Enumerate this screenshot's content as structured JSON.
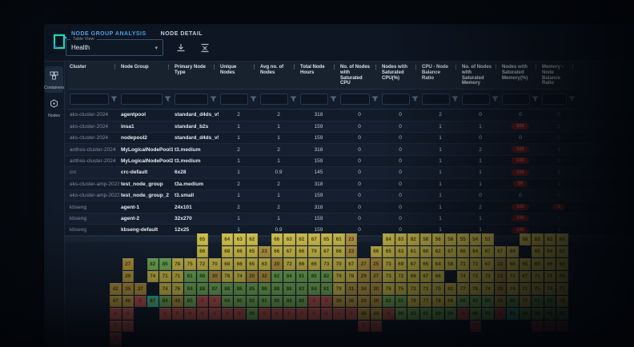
{
  "tabs": [
    {
      "label": "NODE GROUP ANALYSIS",
      "active": true
    },
    {
      "label": "NODE DETAIL",
      "active": false
    }
  ],
  "table_view": {
    "label": "Table View",
    "value": "Health"
  },
  "toolbar_icons": {
    "download": "download-icon",
    "fit_view": "fit-view-icon"
  },
  "sidebar": {
    "items": [
      {
        "label": "Containers",
        "icon": "containers-icon",
        "active": true
      },
      {
        "label": "Nodes",
        "icon": "nodes-icon",
        "active": false
      }
    ]
  },
  "colors": {
    "accent_tab": "#4da0e0",
    "pill_bg": "#5d1d1d",
    "pill_text": "#e05252",
    "heat_yellow": "#d2c24c",
    "heat_olive": "#bb9c43",
    "heat_green": "#79b55b",
    "heat_red": "#cf5f57",
    "heat_selected_border": "#19cdd6"
  },
  "table": {
    "columns": [
      "Cluster",
      "Node Group",
      "Primary Node Type",
      "Unique Nodes",
      "Avg no. of Nodes",
      "Total Node Hours",
      "No. of Nodes with Saturated CPU",
      "Nodes with Saturated CPU(%)",
      "CPU - Node Balance Ratio",
      "No. of Nodes with Saturated Memory",
      "Nodes with Saturated Memory(%)",
      "Memory - Node Balance Ratio"
    ],
    "rows": [
      {
        "cluster": "aks-cluster-2024",
        "node_group": "agentpool",
        "primary_node_type": "standard_d4ds_v5",
        "unique_nodes": "2",
        "avg_nodes": "2",
        "total_node_hours": "318",
        "sat_cpu": "0",
        "sat_cpu_pct": "0",
        "cpu_balance": "2",
        "sat_mem": "0",
        "sat_mem_pct": "0",
        "sat_mem_pct_pill": false,
        "mem_balance": "0",
        "mem_balance_pill": false
      },
      {
        "cluster": "aks-cluster-2024",
        "node_group": "insa1",
        "primary_node_type": "standard_b2s",
        "unique_nodes": "1",
        "avg_nodes": "1",
        "total_node_hours": "159",
        "sat_cpu": "0",
        "sat_cpu_pct": "0",
        "cpu_balance": "1",
        "sat_mem": "1",
        "sat_mem_pct": "100",
        "sat_mem_pct_pill": true,
        "mem_balance": "1",
        "mem_balance_pill": false
      },
      {
        "cluster": "aks-cluster-2024",
        "node_group": "nodepool2",
        "primary_node_type": "standard_d4ds_v5",
        "unique_nodes": "1",
        "avg_nodes": "1",
        "total_node_hours": "159",
        "sat_cpu": "0",
        "sat_cpu_pct": "0",
        "cpu_balance": "1",
        "sat_mem": "0",
        "sat_mem_pct": "0",
        "sat_mem_pct_pill": false,
        "mem_balance": "0",
        "mem_balance_pill": false
      },
      {
        "cluster": "anthos-cluster-2024",
        "node_group": "MyLogicalNodePool1",
        "primary_node_type": "t3.medium",
        "unique_nodes": "2",
        "avg_nodes": "2",
        "total_node_hours": "318",
        "sat_cpu": "0",
        "sat_cpu_pct": "0",
        "cpu_balance": "1",
        "sat_mem": "2",
        "sat_mem_pct": "100",
        "sat_mem_pct_pill": true,
        "mem_balance": "1",
        "mem_balance_pill": false
      },
      {
        "cluster": "anthos-cluster-2024",
        "node_group": "MyLogicalNodePool2",
        "primary_node_type": "t3.medium",
        "unique_nodes": "1",
        "avg_nodes": "1",
        "total_node_hours": "159",
        "sat_cpu": "0",
        "sat_cpu_pct": "0",
        "cpu_balance": "1",
        "sat_mem": "1",
        "sat_mem_pct": "100",
        "sat_mem_pct_pill": true,
        "mem_balance": "1",
        "mem_balance_pill": false
      },
      {
        "cluster": "crc",
        "node_group": "crc-default",
        "primary_node_type": "6x28",
        "unique_nodes": "1",
        "avg_nodes": "0.9",
        "total_node_hours": "145",
        "sat_cpu": "0",
        "sat_cpu_pct": "0",
        "cpu_balance": "1",
        "sat_mem": "1",
        "sat_mem_pct": "100",
        "sat_mem_pct_pill": true,
        "mem_balance": "1",
        "mem_balance_pill": false
      },
      {
        "cluster": "eks-cluster-amp-2023",
        "node_group": "test_node_group",
        "primary_node_type": "t3a.medium",
        "unique_nodes": "2",
        "avg_nodes": "2",
        "total_node_hours": "318",
        "sat_cpu": "0",
        "sat_cpu_pct": "0",
        "cpu_balance": "1",
        "sat_mem": "1",
        "sat_mem_pct": "50",
        "sat_mem_pct_pill": true,
        "mem_balance": "1",
        "mem_balance_pill": false
      },
      {
        "cluster": "eks-cluster-amp-2023",
        "node_group": "test_node_group_2",
        "primary_node_type": "t3.small",
        "unique_nodes": "1",
        "avg_nodes": "1",
        "total_node_hours": "159",
        "sat_cpu": "0",
        "sat_cpu_pct": "0",
        "cpu_balance": "1",
        "sat_mem": "0",
        "sat_mem_pct": "0",
        "sat_mem_pct_pill": false,
        "mem_balance": "0",
        "mem_balance_pill": false
      },
      {
        "cluster": "kbseng",
        "node_group": "agent-1",
        "primary_node_type": "24x101",
        "unique_nodes": "2",
        "avg_nodes": "2",
        "total_node_hours": "318",
        "sat_cpu": "0",
        "sat_cpu_pct": "0",
        "cpu_balance": "1",
        "sat_mem": "2",
        "sat_mem_pct": "100",
        "sat_mem_pct_pill": true,
        "mem_balance": "1",
        "mem_balance_pill": true
      },
      {
        "cluster": "kbseng",
        "node_group": "agent-2",
        "primary_node_type": "32x270",
        "unique_nodes": "1",
        "avg_nodes": "1",
        "total_node_hours": "159",
        "sat_cpu": "0",
        "sat_cpu_pct": "0",
        "cpu_balance": "1",
        "sat_mem": "1",
        "sat_mem_pct": "100",
        "sat_mem_pct_pill": true,
        "mem_balance": "1",
        "mem_balance_pill": false
      },
      {
        "cluster": "kbseng",
        "node_group": "kbseng-default",
        "primary_node_type": "12x25",
        "unique_nodes": "1",
        "avg_nodes": "0.9",
        "total_node_hours": "159",
        "sat_cpu": "0",
        "sat_cpu_pct": "0",
        "cpu_balance": "1",
        "sat_mem": "1",
        "sat_mem_pct": "100",
        "sat_mem_pct_pill": true,
        "mem_balance": "1",
        "mem_balance_pill": false
      }
    ]
  },
  "chart_data": {
    "type": "heatmap",
    "title": "",
    "legend_position": "none",
    "cell_color_scale": {
      "y": "yellow 51-85",
      "o": "olive 20-50",
      "g": "green 74-96",
      "r": "red saturated",
      "t": "selected (teal border)"
    },
    "rows": [
      [
        "",
        "",
        "",
        "",
        "",
        "",
        "",
        "65y",
        "",
        "64y",
        "63y",
        "62y",
        "",
        "66y",
        "63y",
        "62y",
        "67y",
        "65y",
        "61y",
        "23o",
        "",
        "",
        "84y",
        "83y",
        "82y",
        "58y",
        "56y",
        "58y",
        "55y",
        "54y",
        "51y",
        "",
        "",
        "58y",
        "63y",
        "62y",
        "60y"
      ],
      [
        "",
        "",
        "",
        "",
        "",
        "",
        "",
        "66y",
        "",
        "68y",
        "66y",
        "65y",
        "23o",
        "66y",
        "67y",
        "66y",
        "70y",
        "67y",
        "66y",
        "23o",
        "",
        "66y",
        "65y",
        "63y",
        "61y",
        "60y",
        "62y",
        "67y",
        "66y",
        "64y",
        "67y",
        "67y",
        "64y",
        "",
        "65y",
        "64y",
        "62y"
      ],
      [
        "",
        "27o",
        "",
        "82g",
        "85g",
        "78y",
        "75y",
        "72y",
        "70y",
        "68y",
        "66y",
        "65y",
        "63y",
        "20o",
        "72y",
        "66y",
        "66y",
        "73y",
        "70y",
        "67y",
        "27o",
        "25o",
        "73y",
        "69y",
        "67y",
        "65y",
        "64y",
        "58y",
        "71y",
        "73y",
        "67y",
        "23o",
        "68y",
        "65y",
        "69y",
        "68y",
        "65y"
      ],
      [
        "",
        "29o",
        "",
        "74y",
        "71y",
        "71y",
        "81g",
        "88g",
        "30o",
        "78y",
        "74y",
        "20o",
        "32o",
        "82g",
        "84g",
        "81g",
        "80g",
        "82g",
        "79y",
        "78y",
        "29o",
        "27o",
        "73y",
        "72y",
        "69y",
        "67y",
        "66y",
        "",
        "74y",
        "72y",
        "73y",
        "23o",
        "72y",
        "67y",
        "71y",
        "71y",
        "66y"
      ],
      [
        "42o",
        "35o",
        "37o",
        "",
        "74y",
        "76y",
        "84g",
        "88g",
        "87g",
        "88g",
        "86g",
        "85g",
        "86g",
        "88g",
        "86g",
        "83g",
        "84g",
        "81g",
        "79y",
        "31o",
        "34o",
        "30o",
        "76y",
        "75y",
        "73y",
        "71y",
        "70y",
        "62y",
        "77y",
        "76y",
        "74y",
        "28o",
        "74y",
        "71y",
        "75y",
        "74y",
        "72y"
      ],
      [
        "47o",
        "40o",
        "0r",
        "87t",
        "84g",
        "40o",
        "85g",
        "0r",
        "0r",
        "94g",
        "90g",
        "92g",
        "91g",
        "90g",
        "88g",
        "80g",
        "0r",
        "0r",
        "36o",
        "36o",
        "29o",
        "30o",
        "82g",
        "81g",
        "79y",
        "77y",
        "78y",
        "66y",
        "80g",
        "82g",
        "80g",
        "33o",
        "80g",
        "77y",
        "81g",
        "80g",
        "78y"
      ],
      [
        "0r",
        "0r",
        "",
        "",
        "0r",
        "0r",
        "0r",
        "0r",
        "0r",
        "0r",
        "0r",
        "90g",
        "0r",
        "0r",
        "0r",
        "0r",
        "0r",
        "0r",
        "0r",
        "0r",
        "48o",
        "44o",
        "0r",
        "90g",
        "93g",
        "91g",
        "89g",
        "90g",
        "0r",
        "90g",
        "90g",
        "0r",
        "93t",
        "90g",
        "88g",
        "92g",
        "96g"
      ],
      [
        "0r",
        "0r",
        "",
        "",
        "",
        "",
        "",
        "",
        "",
        "",
        "",
        "",
        "",
        "",
        "",
        "",
        "",
        "",
        "",
        "",
        "0r",
        "0r",
        "",
        "",
        "",
        "",
        "",
        "",
        "",
        "0r",
        "",
        "",
        "",
        "",
        "0r",
        "0r",
        "0r"
      ],
      [
        "0r",
        "",
        "",
        "",
        "",
        "",
        "",
        "",
        "",
        "",
        "",
        "",
        "",
        "",
        "",
        "",
        "",
        "",
        "",
        "",
        "",
        "",
        "",
        "",
        "",
        "",
        "",
        "",
        "",
        "",
        "",
        "",
        "",
        "",
        "",
        "",
        ""
      ],
      [
        "0r",
        "",
        "",
        "",
        "",
        "",
        "",
        "",
        "",
        "",
        "",
        "",
        "",
        "",
        "",
        "",
        "",
        "",
        "",
        "",
        "",
        "",
        "",
        "",
        "",
        "",
        "",
        "",
        "",
        "",
        "",
        "",
        "",
        "",
        "",
        "",
        ""
      ]
    ]
  }
}
